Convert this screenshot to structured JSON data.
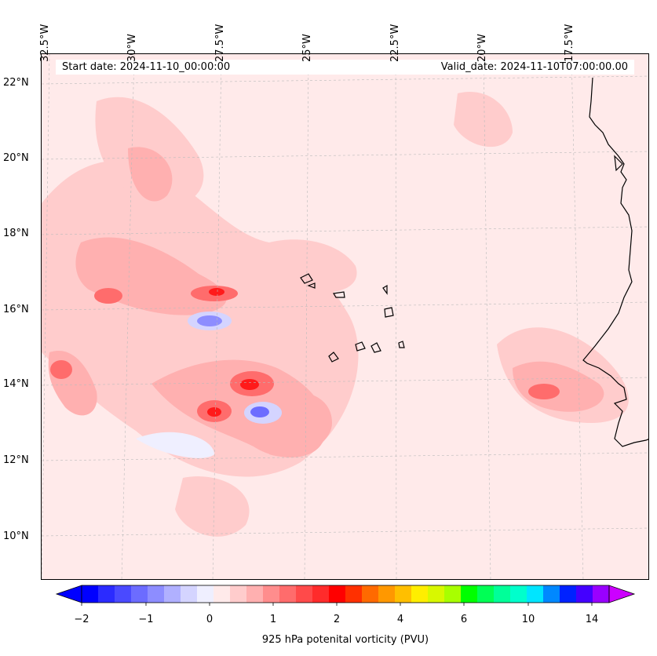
{
  "map": {
    "start_date_label": "Start date: 2024-11-10_00:00:00",
    "valid_date_label": "Valid_date: 2024-11-10T07:00:00.00",
    "longitude_labels": [
      "32.5°W",
      "30°W",
      "27.5°W",
      "25°W",
      "22.5°W",
      "20°W",
      "17.5°W"
    ],
    "latitude_labels": [
      "22°N",
      "20°N",
      "18°N",
      "16°N",
      "14°N",
      "12°N",
      "10°N"
    ],
    "background_color": "#ffeaea",
    "coastline_color": "#000000"
  },
  "colorbar": {
    "title": "925 hPa potenital vorticity (PVU)",
    "tick_labels": [
      "−2",
      "−1",
      "0",
      "1",
      "2",
      "4",
      "6",
      "10",
      "14"
    ],
    "colors": [
      "#0000ff",
      "#2b2bff",
      "#4a4aff",
      "#6c6cff",
      "#8d8dff",
      "#b0b0ff",
      "#d4d4ff",
      "#efefff",
      "#ffeaea",
      "#ffcccc",
      "#ffb0b0",
      "#ff8d8d",
      "#ff6c6c",
      "#ff4a4a",
      "#ff2b2b",
      "#ff0000",
      "#ff3000",
      "#ff6a00",
      "#ff9800",
      "#ffbf00",
      "#ffee00",
      "#d8f800",
      "#a8ff00",
      "#00ff00",
      "#00ff55",
      "#00ff99",
      "#00ffcc",
      "#00e5ff",
      "#0088ff",
      "#0022ff",
      "#4400ff",
      "#9900ff"
    ],
    "under_color": "#0000ff",
    "over_color": "#cc00ff"
  }
}
